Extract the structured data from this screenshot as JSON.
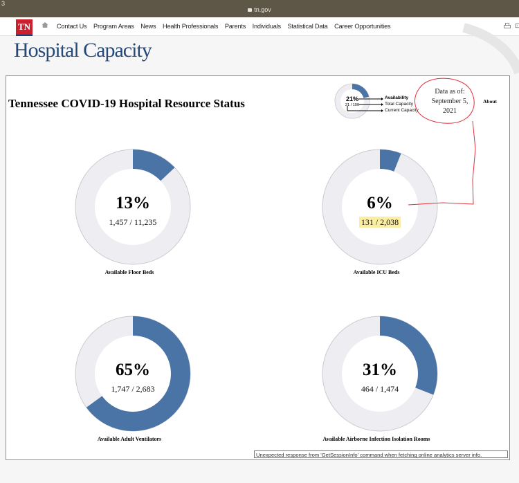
{
  "browser": {
    "corner_char": "3",
    "url": "tn.gov"
  },
  "site": {
    "logo_text": "TN",
    "nav_items": [
      "Contact Us",
      "Program Areas",
      "News",
      "Health Professionals",
      "Parents",
      "Individuals",
      "Statistical Data",
      "Career Opportunities"
    ]
  },
  "page": {
    "title": "Hospital Capacity"
  },
  "dashboard": {
    "title": "Tennessee COVID-19 Hospital Resource Status",
    "legend": {
      "percent": "21%",
      "fraction": "21 / 100",
      "availability": "Availability",
      "total": "Total Capacity",
      "current": "Current Capacity",
      "value": 0.21
    },
    "date_note": {
      "line1": "Data as of:",
      "line2": "September 5,",
      "line3": "2021"
    },
    "about": "About",
    "error": "Unexpected response from 'GetSessionInfo' command when fetching online analytics server info."
  },
  "gauges": [
    {
      "percent": "13%",
      "counts": "1,457 / 11,235",
      "label": "Available Floor Beds",
      "value": 0.13
    },
    {
      "percent": "6%",
      "counts": "131 / 2,038",
      "label": "Available ICU Beds",
      "value": 0.06
    },
    {
      "percent": "65%",
      "counts": "1,747 / 2,683",
      "label": "Available Adult Ventilators",
      "value": 0.65
    },
    {
      "percent": "31%",
      "counts": "464 / 1,474",
      "label": "Available Airborne Infection Isolation Rooms",
      "value": 0.31
    }
  ],
  "colors": {
    "fill": "#4a74a6",
    "track": "#eeeef2",
    "brand": "#27497a",
    "annotation": "#e0303c",
    "highlight": "#fbeea3"
  }
}
